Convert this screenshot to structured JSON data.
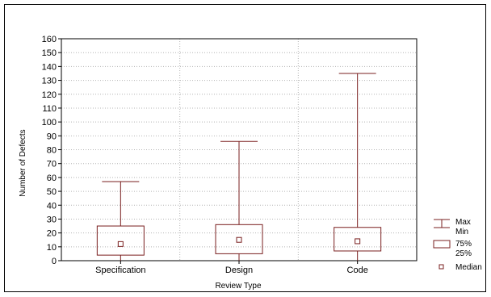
{
  "colors": {
    "box": "#7a1f1f",
    "axis": "#000000",
    "grid": "#b4b4b4",
    "background": "#ffffff"
  },
  "chart_data": {
    "type": "boxplot",
    "title": "",
    "xlabel": "Review Type",
    "ylabel": "Number of Defects",
    "ylim": [
      0,
      160
    ],
    "yticks": [
      0,
      10,
      20,
      30,
      40,
      50,
      60,
      70,
      80,
      90,
      100,
      110,
      120,
      130,
      140,
      150,
      160
    ],
    "grid": true,
    "legend_position": "right",
    "categories": [
      "Specification",
      "Design",
      "Code"
    ],
    "boxes": [
      {
        "category": "Specification",
        "min": 0,
        "q1": 4,
        "median": 12,
        "q3": 25,
        "max": 57
      },
      {
        "category": "Design",
        "min": 0,
        "q1": 5,
        "median": 15,
        "q3": 26,
        "max": 86
      },
      {
        "category": "Code",
        "min": 0,
        "q1": 7,
        "median": 14,
        "q3": 24,
        "max": 135
      }
    ],
    "legend": {
      "whisker_top": "Max",
      "whisker_bottom": "Min",
      "box_top": "75%",
      "box_bottom": "25%",
      "median": "Median"
    }
  }
}
